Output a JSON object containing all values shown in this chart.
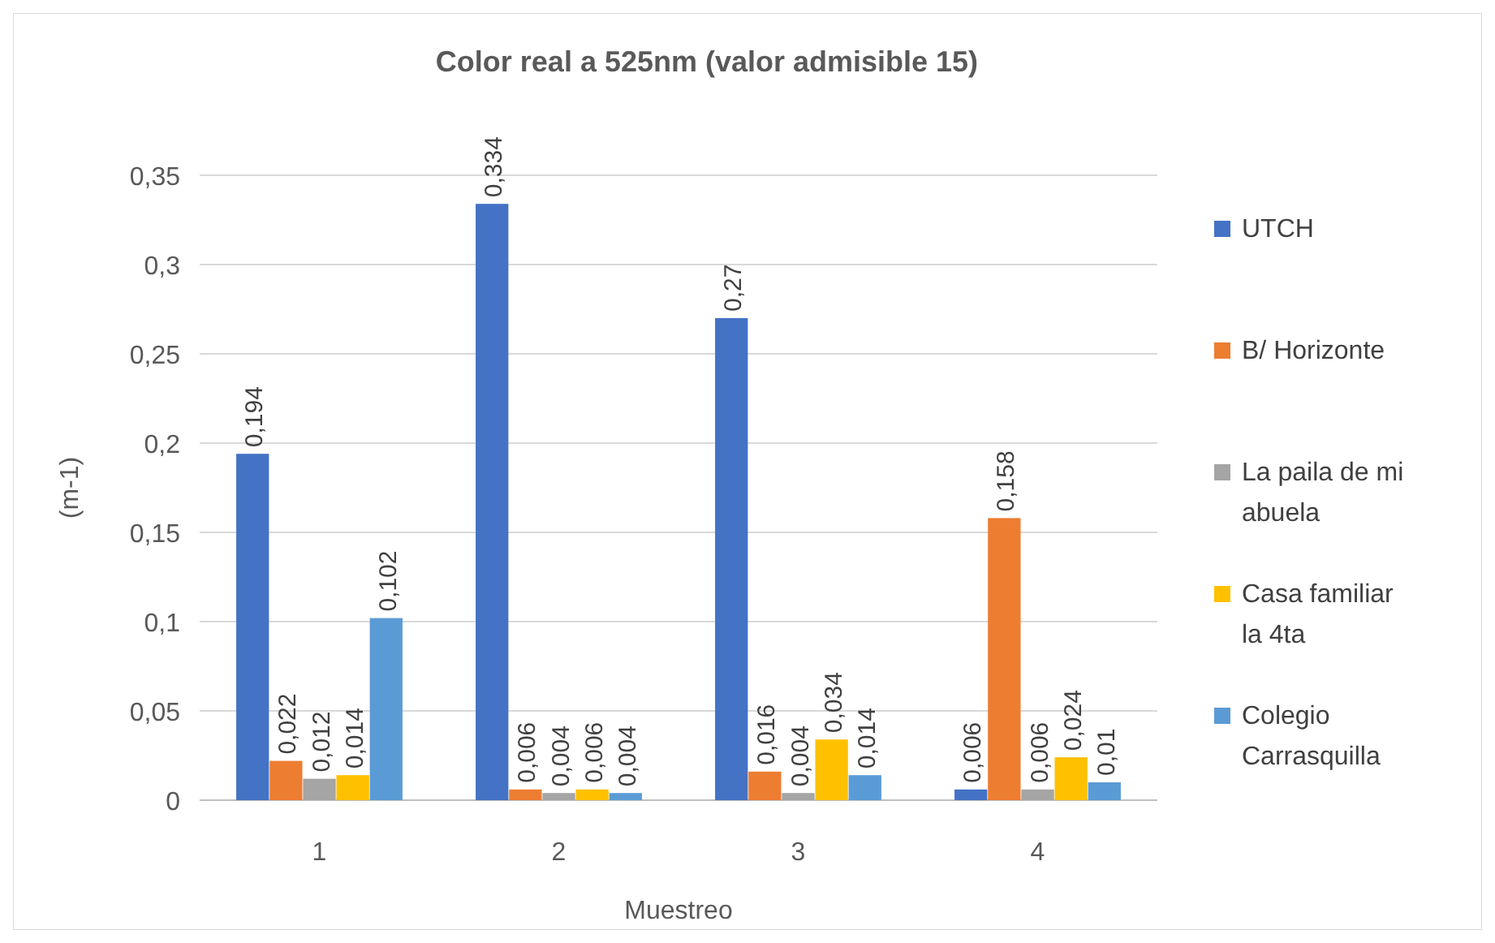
{
  "chart_data": {
    "type": "bar",
    "title": "Color real a 525nm (valor admisible 15)",
    "xlabel": "Muestreo",
    "ylabel": "(m-1)",
    "categories": [
      "1",
      "2",
      "3",
      "4"
    ],
    "series": [
      {
        "name": "UTCH",
        "color": "#4472c4",
        "values": [
          0.194,
          0.334,
          0.27,
          0.006
        ],
        "value_labels": [
          "0,194",
          "0,334",
          "0,27",
          "0,006"
        ]
      },
      {
        "name": "B/ Horizonte",
        "color": "#ed7d31",
        "values": [
          0.022,
          0.006,
          0.016,
          0.158
        ],
        "value_labels": [
          "0,022",
          "0,006",
          "0,016",
          "0,158"
        ]
      },
      {
        "name": "La paila de mi abuela",
        "color": "#a5a5a5",
        "values": [
          0.012,
          0.004,
          0.004,
          0.006
        ],
        "value_labels": [
          "0,012",
          "0,004",
          "0,004",
          "0,006"
        ]
      },
      {
        "name": "Casa familiar la 4ta",
        "color": "#ffc000",
        "values": [
          0.014,
          0.006,
          0.034,
          0.024
        ],
        "value_labels": [
          "0,014",
          "0,006",
          "0,034",
          "0,024"
        ]
      },
      {
        "name": "Colegio Carrasquilla",
        "color": "#5b9bd5",
        "values": [
          0.102,
          0.004,
          0.014,
          0.01
        ],
        "value_labels": [
          "0,102",
          "0,004",
          "0,014",
          "0,01"
        ]
      }
    ],
    "ylim": [
      0,
      0.35
    ],
    "yticks": [
      0,
      {
        "value": 0.05,
        "label": "0,05"
      },
      {
        "value": 0.1,
        "label": "0,1"
      },
      {
        "value": 0.15,
        "label": "0,15"
      },
      {
        "value": 0.2,
        "label": "0,2"
      },
      {
        "value": 0.25,
        "label": "0,25"
      },
      {
        "value": 0.3,
        "label": "0,3"
      },
      {
        "value": 0.35,
        "label": "0,35"
      }
    ],
    "grid": "y",
    "legend": "right"
  }
}
